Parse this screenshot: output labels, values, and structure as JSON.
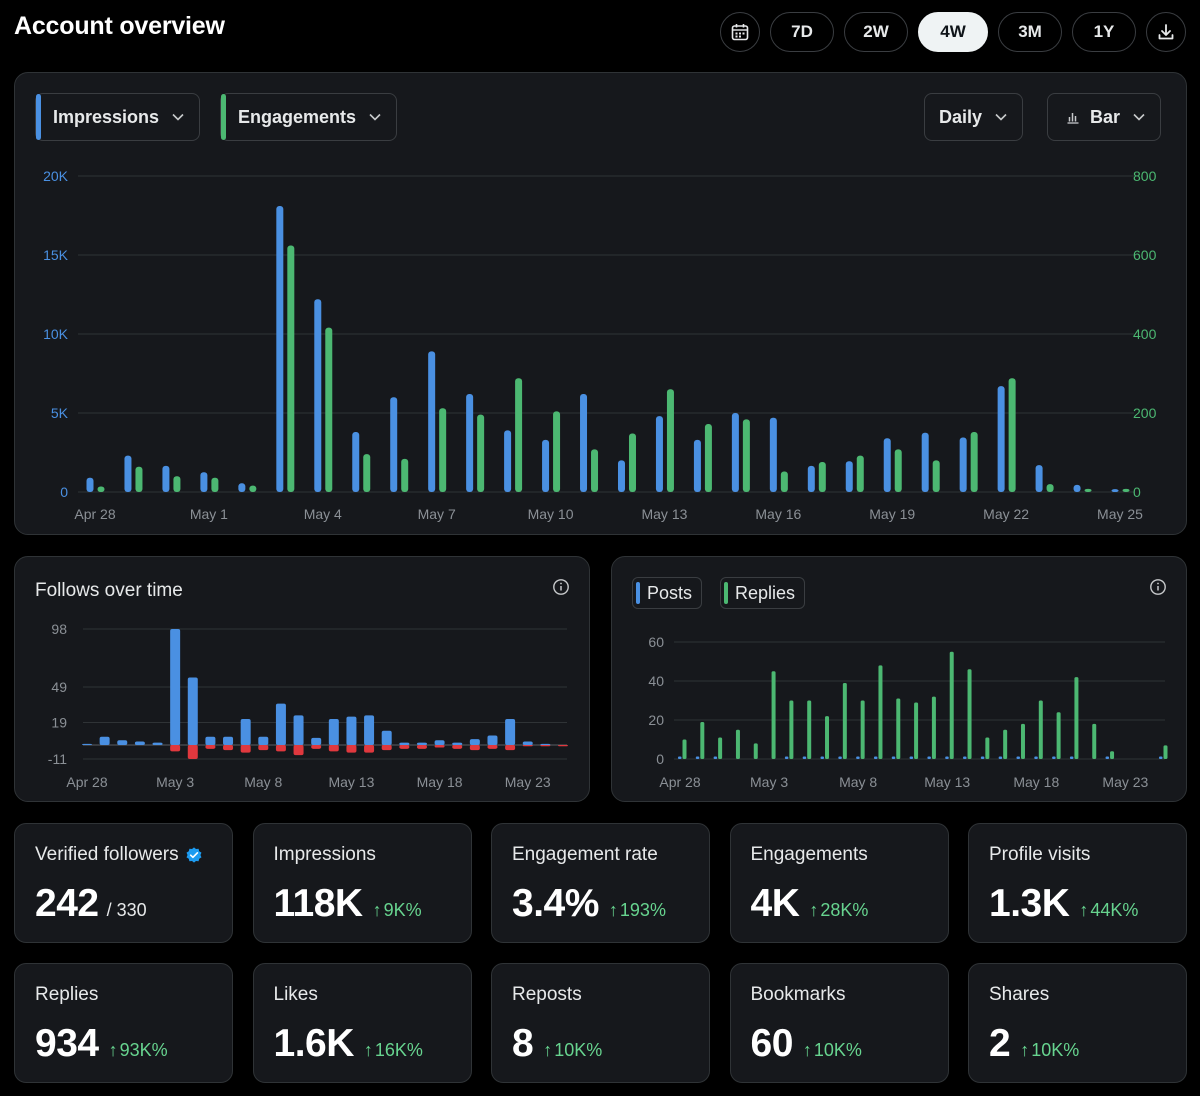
{
  "header": {
    "title": "Account overview",
    "ranges": [
      "7D",
      "2W",
      "4W",
      "3M",
      "1Y"
    ],
    "active_range": "4W"
  },
  "icons": {
    "calendar": "calendar-icon",
    "download": "download-icon",
    "chevron": "chevron-down-icon",
    "bar_chart": "bar-chart-icon",
    "info": "info-icon",
    "verified": "verified-badge-icon"
  },
  "colors": {
    "impressions": "#4a90e2",
    "engagements": "#4cb872",
    "unfollows": "#e0383e",
    "up": "#67d48f"
  },
  "main_chart_controls": {
    "metric_1": "Impressions",
    "metric_2": "Engagements",
    "interval": "Daily",
    "chart_type": "Bar"
  },
  "follows_card": {
    "title": "Follows over time"
  },
  "posts_card": {
    "legend_posts": "Posts",
    "legend_replies": "Replies"
  },
  "chart_data": [
    {
      "type": "bar",
      "x_tick_labels": [
        "Apr 28",
        "May 1",
        "May 4",
        "May 7",
        "May 10",
        "May 13",
        "May 16",
        "May 19",
        "May 22",
        "May 25"
      ],
      "y_left_ticks": [
        "0",
        "5K",
        "10K",
        "15K",
        "20K"
      ],
      "y_right_ticks": [
        "0",
        "200",
        "400",
        "600",
        "800"
      ],
      "ylim_left": [
        0,
        20000
      ],
      "ylim_right": [
        0,
        800
      ],
      "grid": true,
      "categories": [
        "Apr 28",
        "Apr 29",
        "Apr 30",
        "May 1",
        "May 2",
        "May 3",
        "May 4",
        "May 5",
        "May 6",
        "May 7",
        "May 8",
        "May 9",
        "May 10",
        "May 11",
        "May 12",
        "May 13",
        "May 14",
        "May 15",
        "May 16",
        "May 17",
        "May 18",
        "May 19",
        "May 20",
        "May 21",
        "May 22",
        "May 23",
        "May 24",
        "May 25"
      ],
      "series": [
        {
          "name": "Impressions",
          "axis": "left",
          "values": [
            900,
            2300,
            1650,
            1250,
            550,
            18100,
            12200,
            3800,
            6000,
            8900,
            6200,
            3900,
            3300,
            6200,
            2000,
            4800,
            3300,
            5000,
            4700,
            1650,
            1950,
            3400,
            3750,
            3450,
            6700,
            1700,
            450,
            180
          ]
        },
        {
          "name": "Engagements",
          "axis": "left",
          "values": [
            14,
            64,
            40,
            36,
            16,
            624,
            416,
            96,
            84,
            212,
            196,
            288,
            204,
            108,
            148,
            260,
            172,
            184,
            52,
            76,
            92,
            108,
            80,
            152,
            288,
            20,
            8,
            8
          ]
        }
      ]
    },
    {
      "type": "bar",
      "title": "Follows over time",
      "x_tick_labels": [
        "Apr 28",
        "May 3",
        "May 8",
        "May 13",
        "May 18",
        "May 23"
      ],
      "y_ticks": [
        "-11",
        "19",
        "49",
        "98"
      ],
      "ylim": [
        -11,
        98
      ],
      "grid": true,
      "categories": [
        "Apr 28",
        "Apr 29",
        "Apr 30",
        "May 1",
        "May 2",
        "May 3",
        "May 4",
        "May 5",
        "May 6",
        "May 7",
        "May 8",
        "May 9",
        "May 10",
        "May 11",
        "May 12",
        "May 13",
        "May 14",
        "May 15",
        "May 16",
        "May 17",
        "May 18",
        "May 19",
        "May 20",
        "May 21",
        "May 22",
        "May 23",
        "May 24",
        "May 25"
      ],
      "series": [
        {
          "name": "Follows",
          "values": [
            1,
            7,
            4,
            3,
            2,
            98,
            57,
            7,
            7,
            22,
            7,
            35,
            25,
            6,
            22,
            24,
            25,
            12,
            2,
            2,
            4,
            2,
            5,
            8,
            22,
            3,
            1,
            0
          ]
        },
        {
          "name": "Unfollows",
          "values": [
            0,
            0,
            0,
            0,
            0,
            -5,
            -11,
            -3,
            -4,
            -6,
            -4,
            -5,
            -8,
            -3,
            -5,
            -6,
            -6,
            -4,
            -3,
            -3,
            -2,
            -3,
            -4,
            -3,
            -4,
            -1,
            -1,
            -1
          ]
        }
      ]
    },
    {
      "type": "bar",
      "x_tick_labels": [
        "Apr 28",
        "May 3",
        "May 8",
        "May 13",
        "May 18",
        "May 23"
      ],
      "y_ticks": [
        "0",
        "20",
        "40",
        "60"
      ],
      "ylim": [
        0,
        60
      ],
      "grid": true,
      "categories": [
        "Apr 28",
        "Apr 29",
        "Apr 30",
        "May 1",
        "May 2",
        "May 3",
        "May 4",
        "May 5",
        "May 6",
        "May 7",
        "May 8",
        "May 9",
        "May 10",
        "May 11",
        "May 12",
        "May 13",
        "May 14",
        "May 15",
        "May 16",
        "May 17",
        "May 18",
        "May 19",
        "May 20",
        "May 21",
        "May 22",
        "May 23",
        "May 24",
        "May 25"
      ],
      "series": [
        {
          "name": "Posts",
          "values": [
            1,
            1,
            1,
            0,
            0,
            0,
            1,
            1,
            1,
            1,
            1,
            1,
            1,
            1,
            1,
            1,
            1,
            1,
            1,
            1,
            1,
            1,
            1,
            0,
            1,
            0,
            0,
            1
          ]
        },
        {
          "name": "Replies",
          "values": [
            10,
            19,
            11,
            15,
            8,
            45,
            30,
            30,
            22,
            39,
            30,
            48,
            31,
            29,
            32,
            55,
            46,
            11,
            15,
            18,
            30,
            24,
            42,
            18,
            4,
            0,
            0,
            7
          ]
        }
      ]
    }
  ],
  "stats": [
    {
      "label": "Verified followers",
      "value": "242",
      "sub": "/ 330",
      "change": "",
      "verified": true
    },
    {
      "label": "Impressions",
      "value": "118K",
      "change": "9K%"
    },
    {
      "label": "Engagement rate",
      "value": "3.4%",
      "change": "193%"
    },
    {
      "label": "Engagements",
      "value": "4K",
      "change": "28K%"
    },
    {
      "label": "Profile visits",
      "value": "1.3K",
      "change": "44K%"
    },
    {
      "label": "Replies",
      "value": "934",
      "change": "93K%"
    },
    {
      "label": "Likes",
      "value": "1.6K",
      "change": "16K%"
    },
    {
      "label": "Reposts",
      "value": "8",
      "change": "10K%"
    },
    {
      "label": "Bookmarks",
      "value": "60",
      "change": "10K%"
    },
    {
      "label": "Shares",
      "value": "2",
      "change": "10K%"
    }
  ]
}
